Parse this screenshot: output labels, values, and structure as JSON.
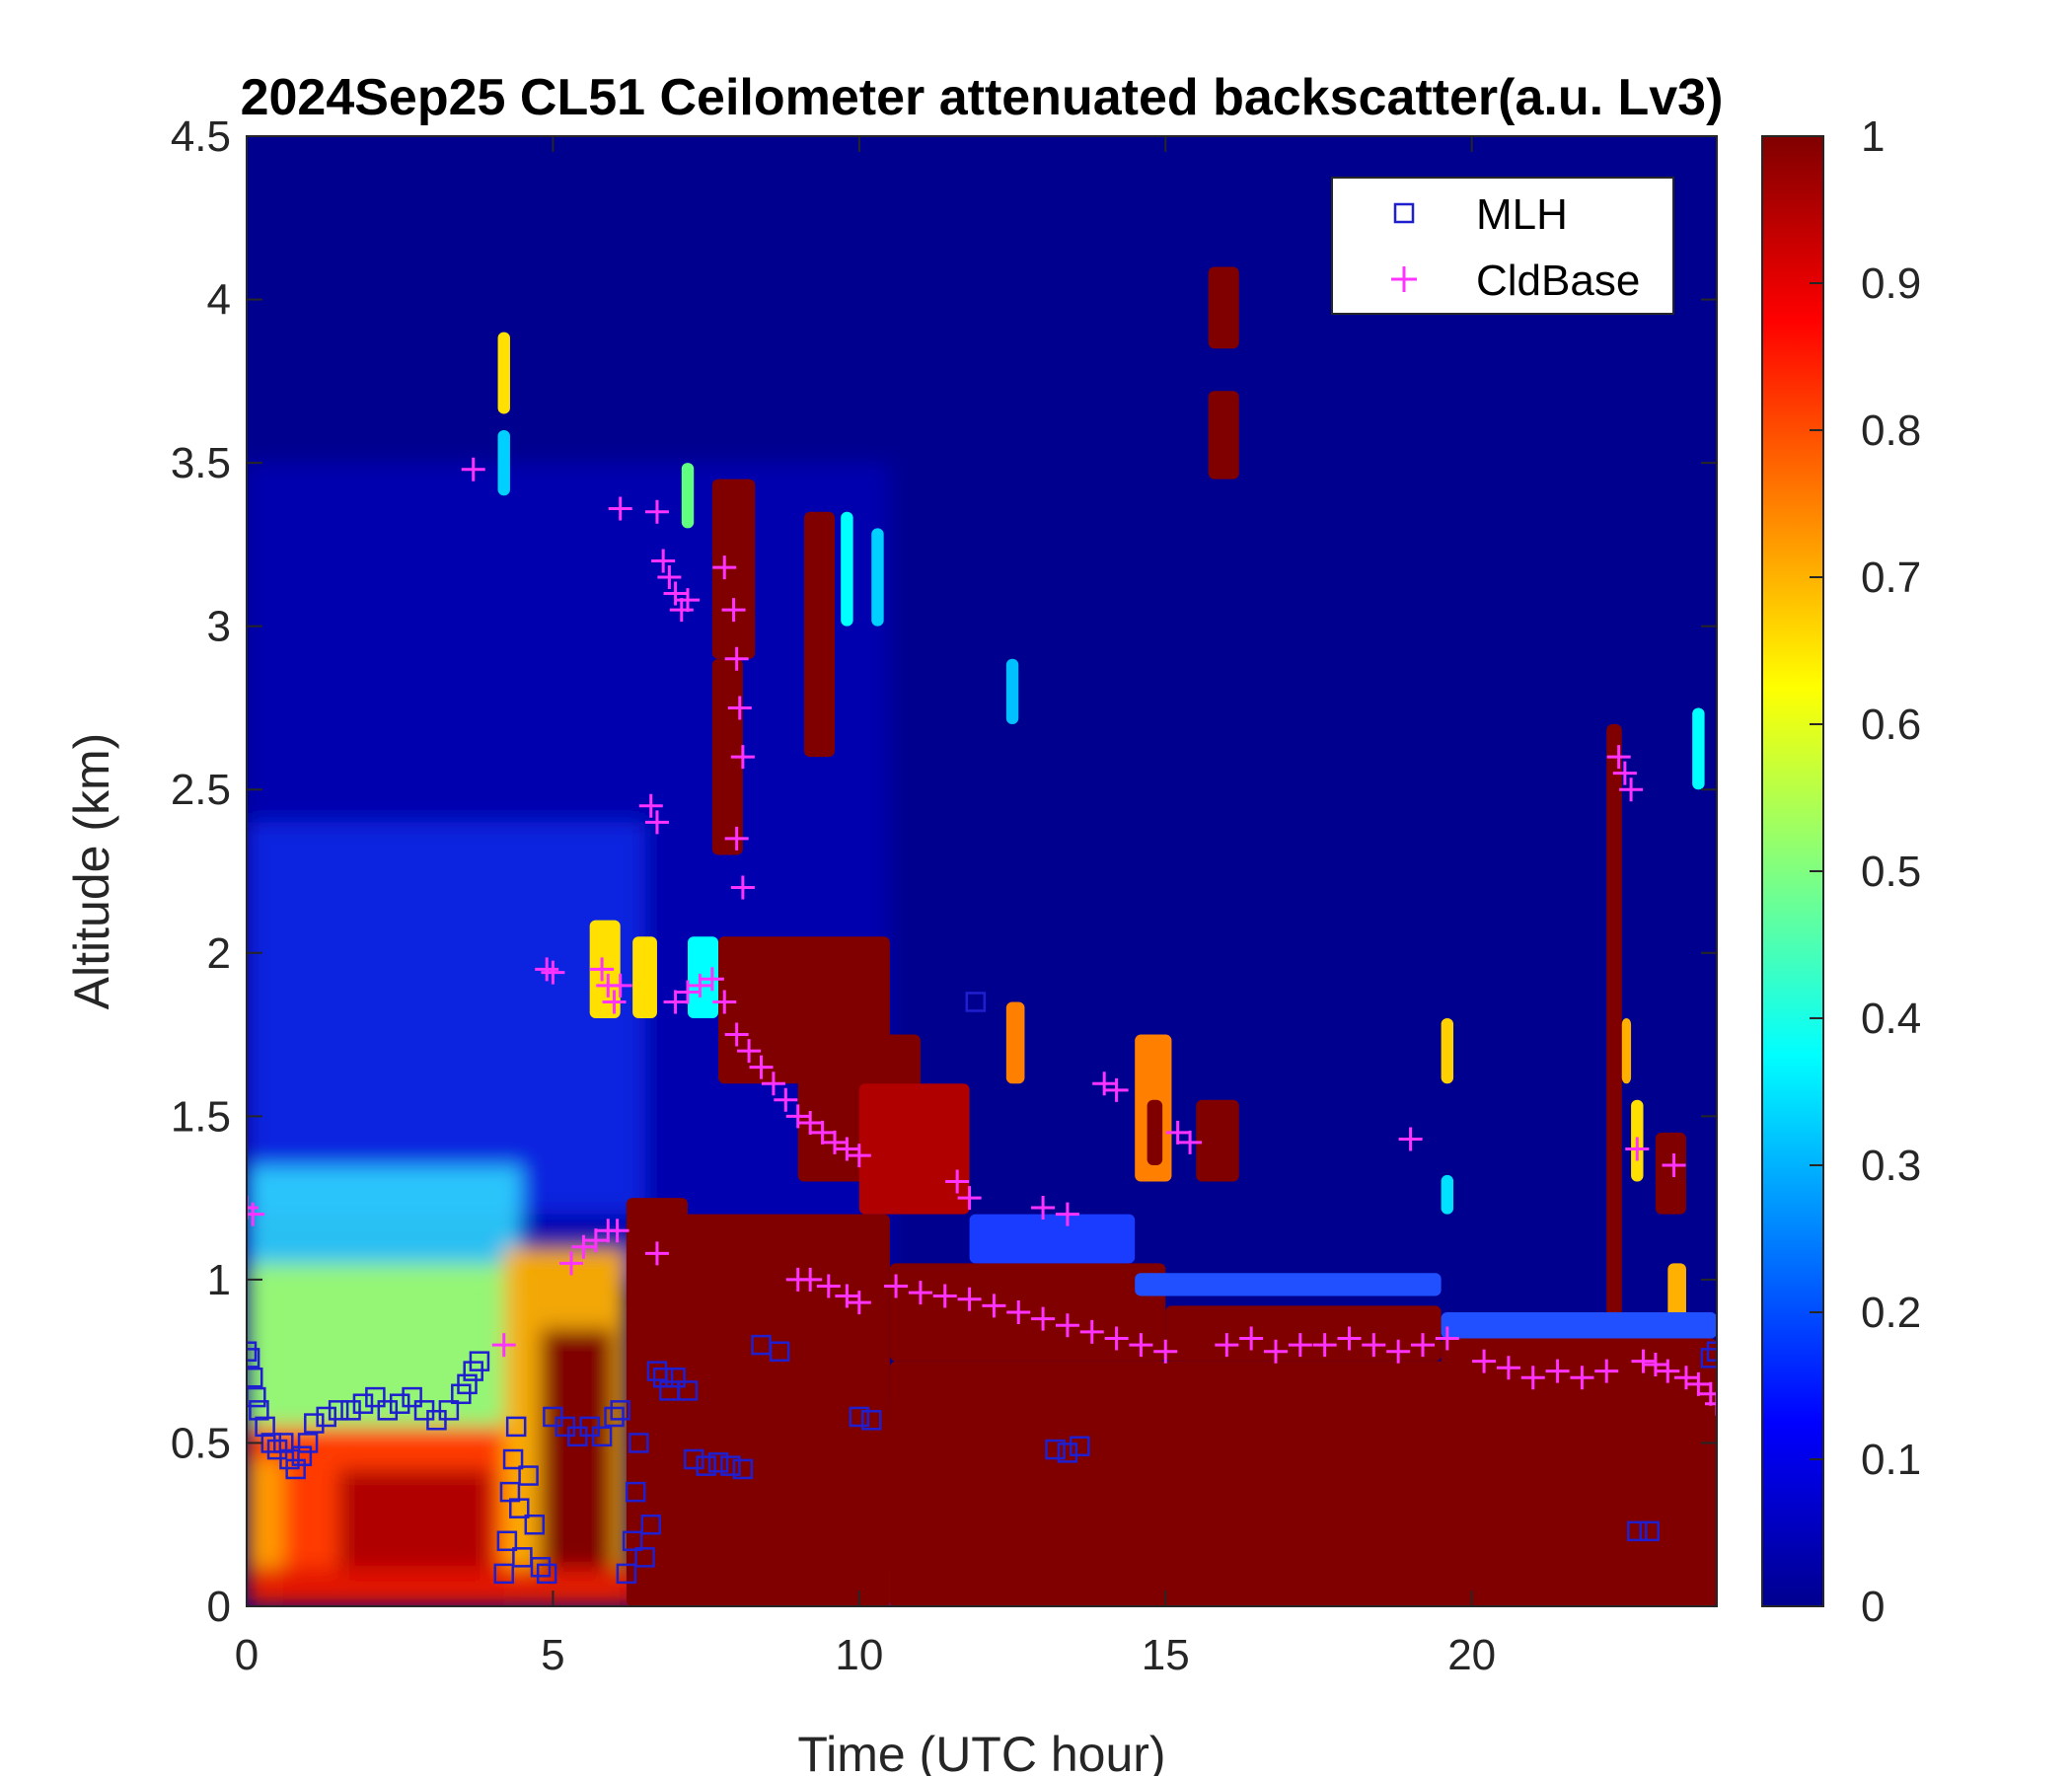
{
  "chart_data": {
    "type": "heatmap",
    "title": "2024Sep25 CL51 Ceilometer attenuated backscatter(a.u. Lv3)",
    "xlabel": "Time (UTC hour)",
    "ylabel": "Altitude (km)",
    "xlim": [
      0,
      24
    ],
    "ylim": [
      0,
      4.5
    ],
    "xticks": [
      "0",
      "5",
      "10",
      "15",
      "20"
    ],
    "yticks": [
      "0",
      "0.5",
      "1",
      "1.5",
      "2",
      "2.5",
      "3",
      "3.5",
      "4",
      "4.5"
    ],
    "colorbar": {
      "colormap": "jet",
      "range": [
        0,
        1
      ],
      "ticks": [
        "0",
        "0.1",
        "0.2",
        "0.3",
        "0.4",
        "0.5",
        "0.6",
        "0.7",
        "0.8",
        "0.9",
        "1"
      ]
    },
    "legend": {
      "placement": "top-right",
      "entries": [
        {
          "label": "MLH",
          "marker": "square",
          "color": "#1f1fd0"
        },
        {
          "label": "CldBase",
          "marker": "plus",
          "color": "#ff33ff"
        }
      ]
    },
    "colors": {
      "background_low": "#00008f",
      "saturated": "#800000",
      "mlh": "#1f1fd0",
      "cldbase": "#ff33ff"
    },
    "series": [
      {
        "name": "MLH",
        "points": [
          [
            0.0,
            0.78
          ],
          [
            0.05,
            0.76
          ],
          [
            0.1,
            0.7
          ],
          [
            0.15,
            0.64
          ],
          [
            0.2,
            0.6
          ],
          [
            0.3,
            0.55
          ],
          [
            0.4,
            0.5
          ],
          [
            0.5,
            0.48
          ],
          [
            0.6,
            0.5
          ],
          [
            0.7,
            0.45
          ],
          [
            0.8,
            0.42
          ],
          [
            0.9,
            0.46
          ],
          [
            1.0,
            0.5
          ],
          [
            1.1,
            0.56
          ],
          [
            1.3,
            0.58
          ],
          [
            1.5,
            0.6
          ],
          [
            1.7,
            0.6
          ],
          [
            1.9,
            0.62
          ],
          [
            2.1,
            0.64
          ],
          [
            2.3,
            0.6
          ],
          [
            2.5,
            0.62
          ],
          [
            2.7,
            0.64
          ],
          [
            2.9,
            0.6
          ],
          [
            3.1,
            0.57
          ],
          [
            3.3,
            0.6
          ],
          [
            3.5,
            0.65
          ],
          [
            3.6,
            0.68
          ],
          [
            3.7,
            0.72
          ],
          [
            3.8,
            0.75
          ],
          [
            4.2,
            0.1
          ],
          [
            4.25,
            0.2
          ],
          [
            4.3,
            0.35
          ],
          [
            4.35,
            0.45
          ],
          [
            4.4,
            0.55
          ],
          [
            4.45,
            0.3
          ],
          [
            4.5,
            0.15
          ],
          [
            4.6,
            0.4
          ],
          [
            4.7,
            0.25
          ],
          [
            4.8,
            0.12
          ],
          [
            4.9,
            0.1
          ],
          [
            5.0,
            0.58
          ],
          [
            5.2,
            0.55
          ],
          [
            5.4,
            0.52
          ],
          [
            5.6,
            0.55
          ],
          [
            5.8,
            0.52
          ],
          [
            6.0,
            0.58
          ],
          [
            6.1,
            0.6
          ],
          [
            6.2,
            0.1
          ],
          [
            6.3,
            0.2
          ],
          [
            6.35,
            0.35
          ],
          [
            6.4,
            0.5
          ],
          [
            6.5,
            0.15
          ],
          [
            6.6,
            0.25
          ],
          [
            6.7,
            0.72
          ],
          [
            6.8,
            0.7
          ],
          [
            6.9,
            0.66
          ],
          [
            7.0,
            0.7
          ],
          [
            7.2,
            0.66
          ],
          [
            7.3,
            0.45
          ],
          [
            7.5,
            0.43
          ],
          [
            7.7,
            0.44
          ],
          [
            7.9,
            0.43
          ],
          [
            8.1,
            0.42
          ],
          [
            8.4,
            0.8
          ],
          [
            8.7,
            0.78
          ],
          [
            10.0,
            0.58
          ],
          [
            10.2,
            0.57
          ],
          [
            11.9,
            1.85
          ],
          [
            13.2,
            0.48
          ],
          [
            13.4,
            0.47
          ],
          [
            13.6,
            0.49
          ],
          [
            22.7,
            0.23
          ],
          [
            22.9,
            0.23
          ],
          [
            23.9,
            0.76
          ],
          [
            24.0,
            0.78
          ]
        ]
      },
      {
        "name": "CldBase",
        "points": [
          [
            0.0,
            1.22
          ],
          [
            0.1,
            1.2
          ],
          [
            3.7,
            3.48
          ],
          [
            4.2,
            0.8
          ],
          [
            4.9,
            1.95
          ],
          [
            5.0,
            1.94
          ],
          [
            5.3,
            1.05
          ],
          [
            5.5,
            1.1
          ],
          [
            5.7,
            1.12
          ],
          [
            5.9,
            1.15
          ],
          [
            6.05,
            1.15
          ],
          [
            5.8,
            1.95
          ],
          [
            5.9,
            1.9
          ],
          [
            6.0,
            1.85
          ],
          [
            6.1,
            1.9
          ],
          [
            6.1,
            3.36
          ],
          [
            6.7,
            3.35
          ],
          [
            6.8,
            3.2
          ],
          [
            6.9,
            3.15
          ],
          [
            7.0,
            3.1
          ],
          [
            7.1,
            3.05
          ],
          [
            7.2,
            3.08
          ],
          [
            6.6,
            2.45
          ],
          [
            6.7,
            2.4
          ],
          [
            6.7,
            1.08
          ],
          [
            7.0,
            1.85
          ],
          [
            7.2,
            1.88
          ],
          [
            7.4,
            1.9
          ],
          [
            7.6,
            1.92
          ],
          [
            7.8,
            1.85
          ],
          [
            7.8,
            3.18
          ],
          [
            7.95,
            3.05
          ],
          [
            8.0,
            2.9
          ],
          [
            8.05,
            2.75
          ],
          [
            8.1,
            2.6
          ],
          [
            8.0,
            2.35
          ],
          [
            8.1,
            2.2
          ],
          [
            8.0,
            1.75
          ],
          [
            8.2,
            1.7
          ],
          [
            8.4,
            1.65
          ],
          [
            8.6,
            1.6
          ],
          [
            8.8,
            1.55
          ],
          [
            9.0,
            1.5
          ],
          [
            9.2,
            1.48
          ],
          [
            9.4,
            1.45
          ],
          [
            9.6,
            1.42
          ],
          [
            9.8,
            1.4
          ],
          [
            10.0,
            1.38
          ],
          [
            9.0,
            1.0
          ],
          [
            9.2,
            1.0
          ],
          [
            9.5,
            0.98
          ],
          [
            9.8,
            0.95
          ],
          [
            10.0,
            0.93
          ],
          [
            10.6,
            0.98
          ],
          [
            11.0,
            0.96
          ],
          [
            11.4,
            0.95
          ],
          [
            11.8,
            0.94
          ],
          [
            12.2,
            0.92
          ],
          [
            12.6,
            0.9
          ],
          [
            13.0,
            0.88
          ],
          [
            13.4,
            0.86
          ],
          [
            13.8,
            0.84
          ],
          [
            14.2,
            0.82
          ],
          [
            14.6,
            0.8
          ],
          [
            15.0,
            0.78
          ],
          [
            11.6,
            1.3
          ],
          [
            11.8,
            1.25
          ],
          [
            13.0,
            1.22
          ],
          [
            13.4,
            1.2
          ],
          [
            14.0,
            1.6
          ],
          [
            14.2,
            1.58
          ],
          [
            15.2,
            1.45
          ],
          [
            15.4,
            1.42
          ],
          [
            16.0,
            0.8
          ],
          [
            16.4,
            0.82
          ],
          [
            16.8,
            0.78
          ],
          [
            17.2,
            0.8
          ],
          [
            17.6,
            0.8
          ],
          [
            18.0,
            0.82
          ],
          [
            18.4,
            0.8
          ],
          [
            18.8,
            0.78
          ],
          [
            19.2,
            0.8
          ],
          [
            19.6,
            0.82
          ],
          [
            19.0,
            1.43
          ],
          [
            20.2,
            0.75
          ],
          [
            20.6,
            0.73
          ],
          [
            21.0,
            0.7
          ],
          [
            21.4,
            0.72
          ],
          [
            21.8,
            0.7
          ],
          [
            22.2,
            0.72
          ],
          [
            22.4,
            2.6
          ],
          [
            22.5,
            2.55
          ],
          [
            22.6,
            2.5
          ],
          [
            22.7,
            1.4
          ],
          [
            22.8,
            0.75
          ],
          [
            23.0,
            0.74
          ],
          [
            23.2,
            0.72
          ],
          [
            23.3,
            1.35
          ],
          [
            23.5,
            0.7
          ],
          [
            23.7,
            0.68
          ],
          [
            23.9,
            0.65
          ],
          [
            24.0,
            0.62
          ]
        ]
      }
    ]
  }
}
